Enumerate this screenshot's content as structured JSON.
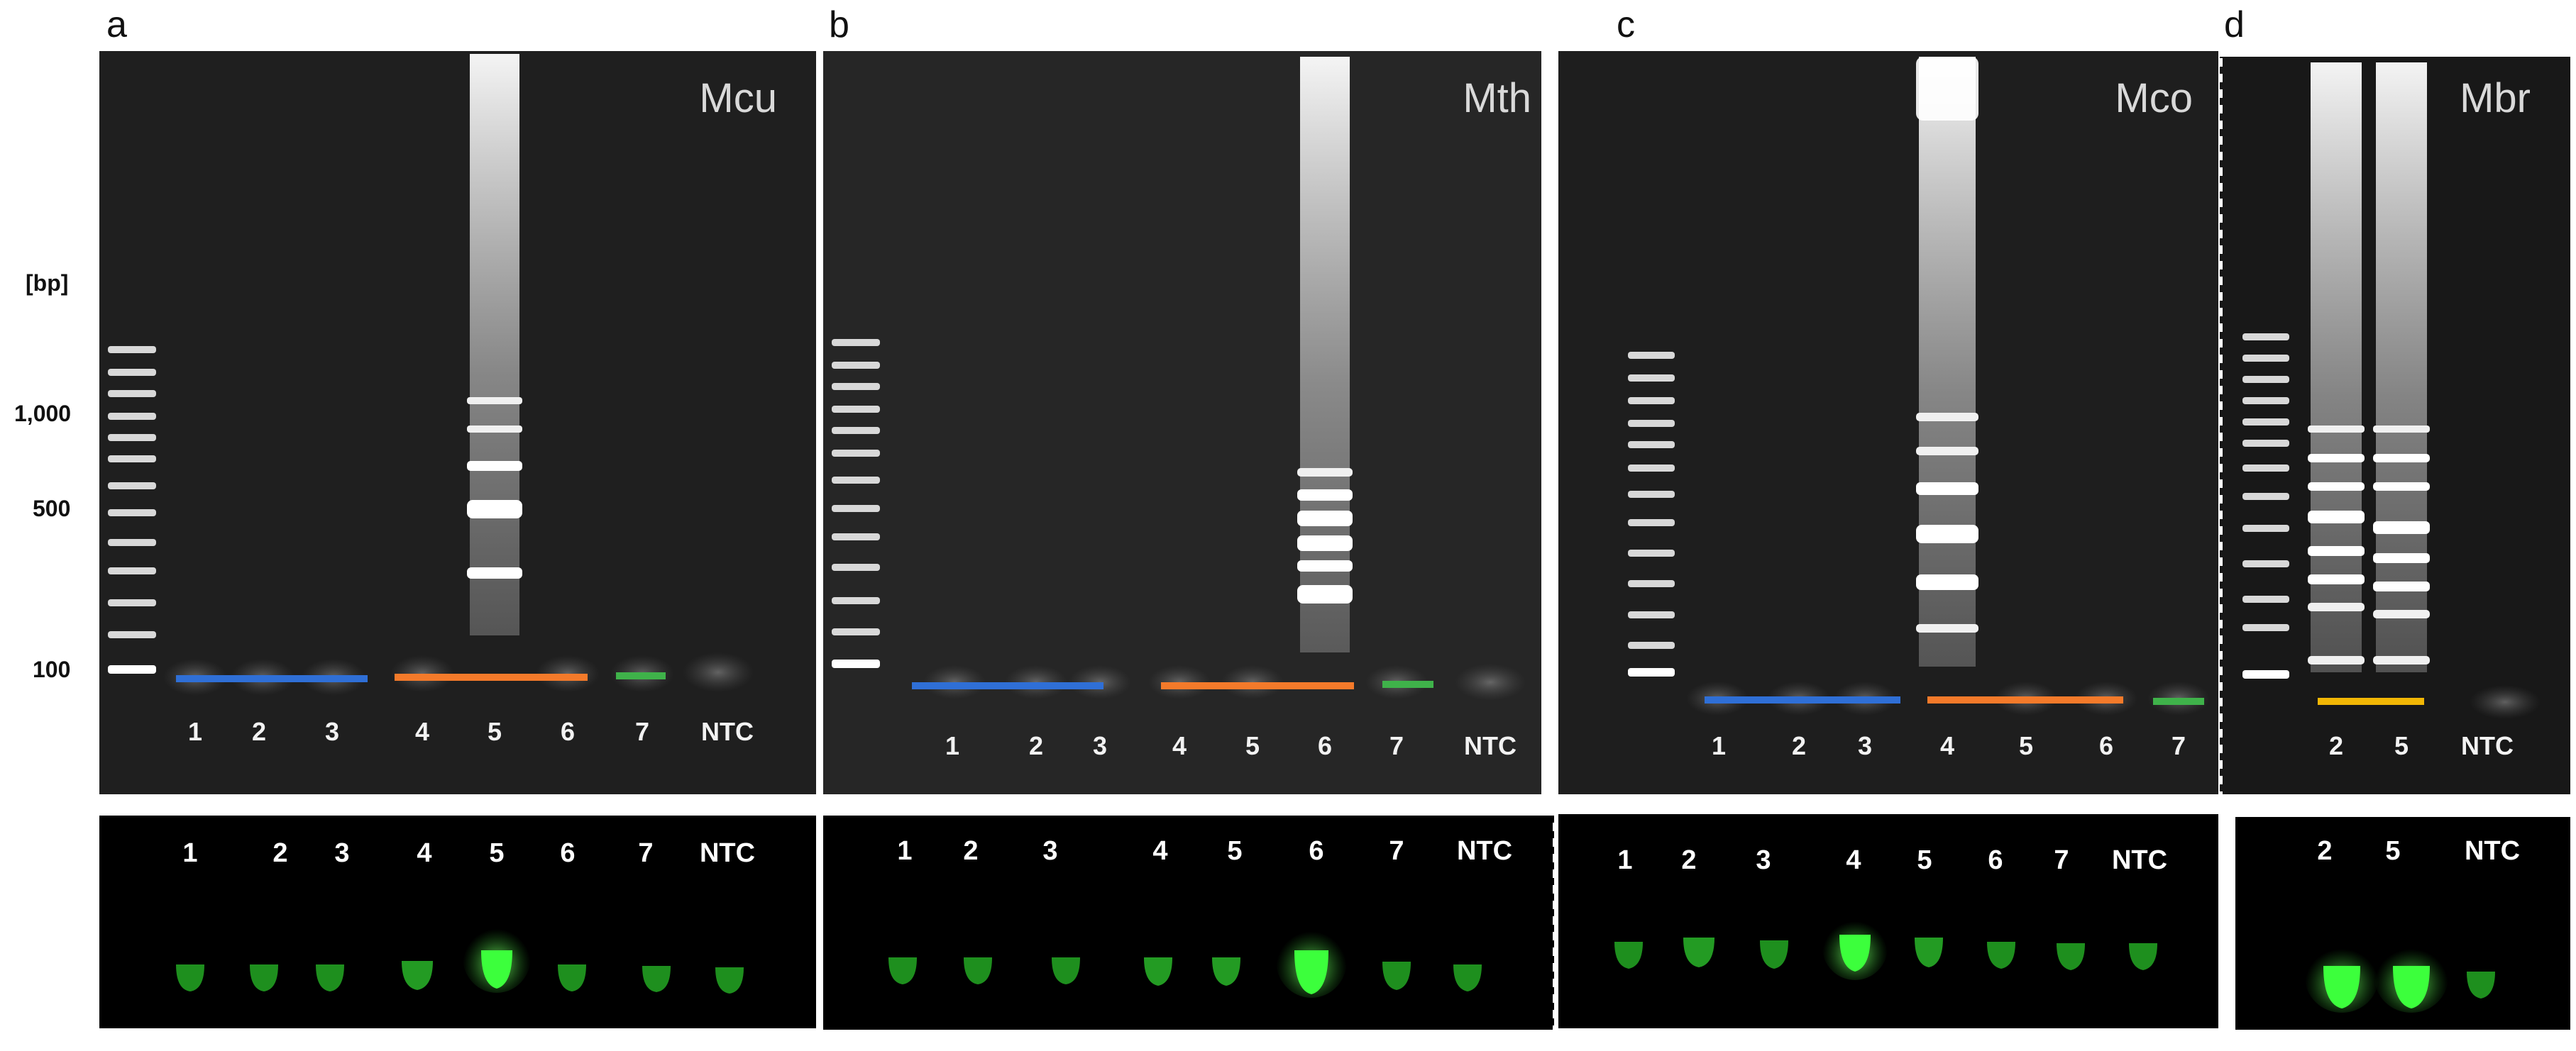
{
  "figure": {
    "size_unit": "bp",
    "ladder_labels": [
      "1,000",
      "500",
      "100"
    ],
    "colors": {
      "gel_background": "#1f1f1f",
      "tube_background": "#000000",
      "fluorescence": "#3cff3c",
      "blue_marker": "#2f6fd6",
      "orange_marker": "#f47a2a",
      "green_marker": "#3fb24a",
      "yellow_marker": "#f2b705"
    }
  },
  "panels": [
    {
      "letter": "a",
      "species": "Mcu",
      "gel_lanes": [
        "1",
        "2",
        "3",
        "4",
        "5",
        "6",
        "7",
        "NTC"
      ],
      "tube_labels": [
        "1",
        "2",
        "3",
        "4",
        "5",
        "6",
        "7",
        "NTC"
      ],
      "positive_lanes": [
        "5"
      ]
    },
    {
      "letter": "b",
      "species": "Mth",
      "gel_lanes": [
        "1",
        "2",
        "3",
        "4",
        "5",
        "6",
        "7",
        "NTC"
      ],
      "tube_labels": [
        "1",
        "2",
        "3",
        "4",
        "5",
        "6",
        "7",
        "NTC"
      ],
      "positive_lanes": [
        "6"
      ]
    },
    {
      "letter": "c",
      "species": "Mco",
      "gel_lanes": [
        "1",
        "2",
        "3",
        "4",
        "5",
        "6",
        "7"
      ],
      "tube_labels": [
        "1",
        "2",
        "3",
        "4",
        "5",
        "6",
        "7",
        "NTC"
      ],
      "positive_lanes": [
        "4"
      ]
    },
    {
      "letter": "d",
      "species": "Mbr",
      "gel_lanes": [
        "2",
        "5",
        "NTC"
      ],
      "tube_labels": [
        "2",
        "5",
        "NTC"
      ],
      "positive_lanes": [
        "2",
        "5"
      ]
    }
  ]
}
